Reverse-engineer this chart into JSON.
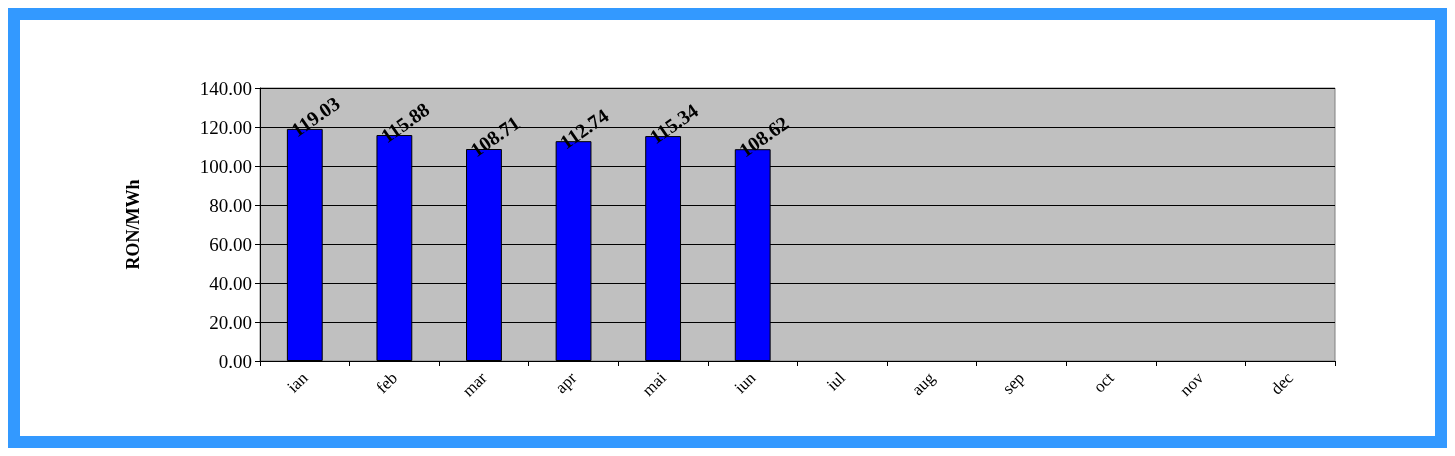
{
  "chart_data": {
    "type": "bar",
    "ylabel": "RON/MWh",
    "categories": [
      "ian",
      "feb",
      "mar",
      "apr",
      "mai",
      "iun",
      "iul",
      "aug",
      "sep",
      "oct",
      "nov",
      "dec"
    ],
    "values": [
      119.03,
      115.88,
      108.71,
      112.74,
      115.34,
      108.62,
      null,
      null,
      null,
      null,
      null,
      null
    ],
    "color": "#0000ff",
    "data_labels": true,
    "ylim": [
      0,
      140
    ],
    "yticks": [
      {
        "value": 0,
        "label": "0.00"
      },
      {
        "value": 20,
        "label": "20.00"
      },
      {
        "value": 40,
        "label": "40.00"
      },
      {
        "value": 60,
        "label": "60.00"
      },
      {
        "value": 80,
        "label": "80.00"
      },
      {
        "value": 100,
        "label": "100.00"
      },
      {
        "value": 120,
        "label": "120.00"
      },
      {
        "value": 140,
        "label": "140.00"
      }
    ],
    "grid": "y"
  }
}
